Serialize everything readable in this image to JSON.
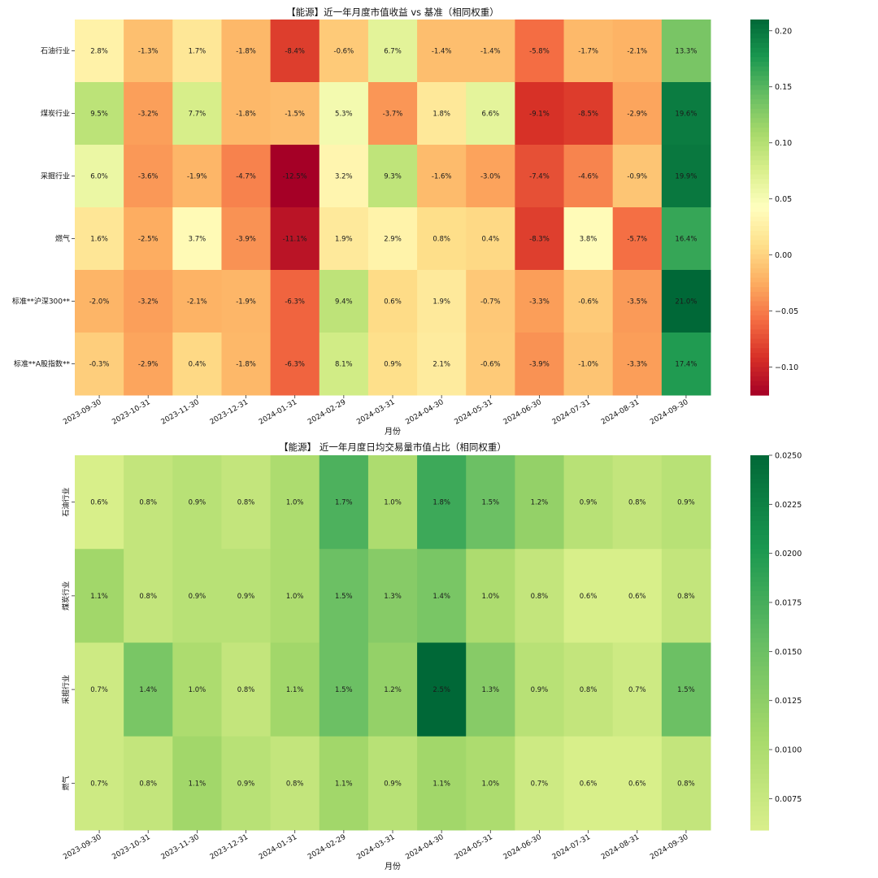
{
  "chart_data": [
    {
      "type": "heatmap",
      "title": "【能源】近一年月度市值收益 vs 基准（相同权重）",
      "xlabel": "月份",
      "ylabel": "",
      "categories": [
        "2023-09-30",
        "2023-10-31",
        "2023-11-30",
        "2023-12-31",
        "2024-01-31",
        "2024-02-29",
        "2024-03-31",
        "2024-04-30",
        "2024-05-31",
        "2024-06-30",
        "2024-07-31",
        "2024-08-31",
        "2024-09-30"
      ],
      "rows": [
        "石油行业",
        "煤炭行业",
        "采掘行业",
        "燃气",
        "标准**沪深300**",
        "标准**A股指数**"
      ],
      "values": [
        [
          0.028,
          -0.013,
          0.017,
          -0.018,
          -0.084,
          -0.006,
          0.067,
          -0.014,
          -0.014,
          -0.058,
          -0.017,
          -0.021,
          0.133
        ],
        [
          0.095,
          -0.032,
          0.077,
          -0.018,
          -0.015,
          0.053,
          -0.037,
          0.018,
          0.066,
          -0.091,
          -0.085,
          -0.029,
          0.196
        ],
        [
          0.06,
          -0.036,
          -0.019,
          -0.047,
          -0.125,
          0.032,
          0.093,
          -0.016,
          -0.03,
          -0.074,
          -0.046,
          -0.009,
          0.199
        ],
        [
          0.016,
          -0.025,
          0.037,
          -0.039,
          -0.111,
          0.019,
          0.029,
          0.008,
          0.004,
          -0.083,
          0.038,
          -0.057,
          0.164
        ],
        [
          -0.02,
          -0.032,
          -0.021,
          -0.019,
          -0.063,
          0.094,
          0.006,
          0.019,
          -0.007,
          -0.033,
          -0.006,
          -0.035,
          0.21
        ],
        [
          -0.003,
          -0.029,
          0.004,
          -0.018,
          -0.063,
          0.081,
          0.009,
          0.021,
          -0.006,
          -0.039,
          -0.01,
          -0.033,
          0.174
        ]
      ],
      "annotations": [
        [
          "2.8%",
          "-1.3%",
          "1.7%",
          "-1.8%",
          "-8.4%",
          "-0.6%",
          "6.7%",
          "-1.4%",
          "-1.4%",
          "-5.8%",
          "-1.7%",
          "-2.1%",
          "13.3%"
        ],
        [
          "9.5%",
          "-3.2%",
          "7.7%",
          "-1.8%",
          "-1.5%",
          "5.3%",
          "-3.7%",
          "1.8%",
          "6.6%",
          "-9.1%",
          "-8.5%",
          "-2.9%",
          "19.6%"
        ],
        [
          "6.0%",
          "-3.6%",
          "-1.9%",
          "-4.7%",
          "-12.5%",
          "3.2%",
          "9.3%",
          "-1.6%",
          "-3.0%",
          "-7.4%",
          "-4.6%",
          "-0.9%",
          "19.9%"
        ],
        [
          "1.6%",
          "-2.5%",
          "3.7%",
          "-3.9%",
          "-11.1%",
          "1.9%",
          "2.9%",
          "0.8%",
          "0.4%",
          "-8.3%",
          "3.8%",
          "-5.7%",
          "16.4%"
        ],
        [
          "-2.0%",
          "-3.2%",
          "-2.1%",
          "-1.9%",
          "-6.3%",
          "9.4%",
          "0.6%",
          "1.9%",
          "-0.7%",
          "-3.3%",
          "-0.6%",
          "-3.5%",
          "21.0%"
        ],
        [
          "-0.3%",
          "-2.9%",
          "0.4%",
          "-1.8%",
          "-6.3%",
          "8.1%",
          "0.9%",
          "2.1%",
          "-0.6%",
          "-3.9%",
          "-1.0%",
          "-3.3%",
          "17.4%"
        ]
      ],
      "colormap": "RdYlGn",
      "vmin": -0.125,
      "vmax": 0.21,
      "colorbar_ticks": [
        0.2,
        0.15,
        0.1,
        0.05,
        0.0,
        -0.05,
        -0.1
      ],
      "colorbar_labels": [
        "0.20",
        "0.15",
        "0.10",
        "0.05",
        "0.00",
        "−0.05",
        "−0.10"
      ],
      "row_label_rotation": 0
    },
    {
      "type": "heatmap",
      "title": "【能源】 近一年月度日均交易量市值占比（相同权重）",
      "xlabel": "月份",
      "ylabel": "",
      "categories": [
        "2023-09-30",
        "2023-10-31",
        "2023-11-30",
        "2023-12-31",
        "2024-01-31",
        "2024-02-29",
        "2024-03-31",
        "2024-04-30",
        "2024-05-31",
        "2024-06-30",
        "2024-07-31",
        "2024-08-31",
        "2024-09-30"
      ],
      "rows": [
        "石油行业",
        "煤炭行业",
        "采掘行业",
        "燃气"
      ],
      "values": [
        [
          0.006,
          0.008,
          0.009,
          0.008,
          0.01,
          0.017,
          0.01,
          0.018,
          0.015,
          0.012,
          0.009,
          0.008,
          0.009
        ],
        [
          0.011,
          0.008,
          0.009,
          0.009,
          0.01,
          0.015,
          0.013,
          0.014,
          0.01,
          0.008,
          0.006,
          0.006,
          0.008
        ],
        [
          0.007,
          0.014,
          0.01,
          0.008,
          0.011,
          0.015,
          0.012,
          0.025,
          0.013,
          0.009,
          0.008,
          0.007,
          0.015
        ],
        [
          0.007,
          0.008,
          0.011,
          0.009,
          0.008,
          0.011,
          0.009,
          0.011,
          0.01,
          0.007,
          0.006,
          0.006,
          0.008
        ]
      ],
      "annotations": [
        [
          "0.6%",
          "0.8%",
          "0.9%",
          "0.8%",
          "1.0%",
          "1.7%",
          "1.0%",
          "1.8%",
          "1.5%",
          "1.2%",
          "0.9%",
          "0.8%",
          "0.9%"
        ],
        [
          "1.1%",
          "0.8%",
          "0.9%",
          "0.9%",
          "1.0%",
          "1.5%",
          "1.3%",
          "1.4%",
          "1.0%",
          "0.8%",
          "0.6%",
          "0.6%",
          "0.8%"
        ],
        [
          "0.7%",
          "1.4%",
          "1.0%",
          "0.8%",
          "1.1%",
          "1.5%",
          "1.2%",
          "2.5%",
          "1.3%",
          "0.9%",
          "0.8%",
          "0.7%",
          "1.5%"
        ],
        [
          "0.7%",
          "0.8%",
          "1.1%",
          "0.9%",
          "0.8%",
          "1.1%",
          "0.9%",
          "1.1%",
          "1.0%",
          "0.7%",
          "0.6%",
          "0.6%",
          "0.8%"
        ]
      ],
      "colormap": "RdYlGn",
      "vmin": 0.0059,
      "vmax": 0.025,
      "cmap_low_fraction": 0.6,
      "colorbar_ticks": [
        0.025,
        0.0225,
        0.02,
        0.0175,
        0.015,
        0.0125,
        0.01,
        0.0075
      ],
      "colorbar_labels": [
        "0.0250",
        "0.0225",
        "0.0200",
        "0.0175",
        "0.0150",
        "0.0125",
        "0.0100",
        "0.0075"
      ],
      "row_label_rotation": 90
    }
  ]
}
